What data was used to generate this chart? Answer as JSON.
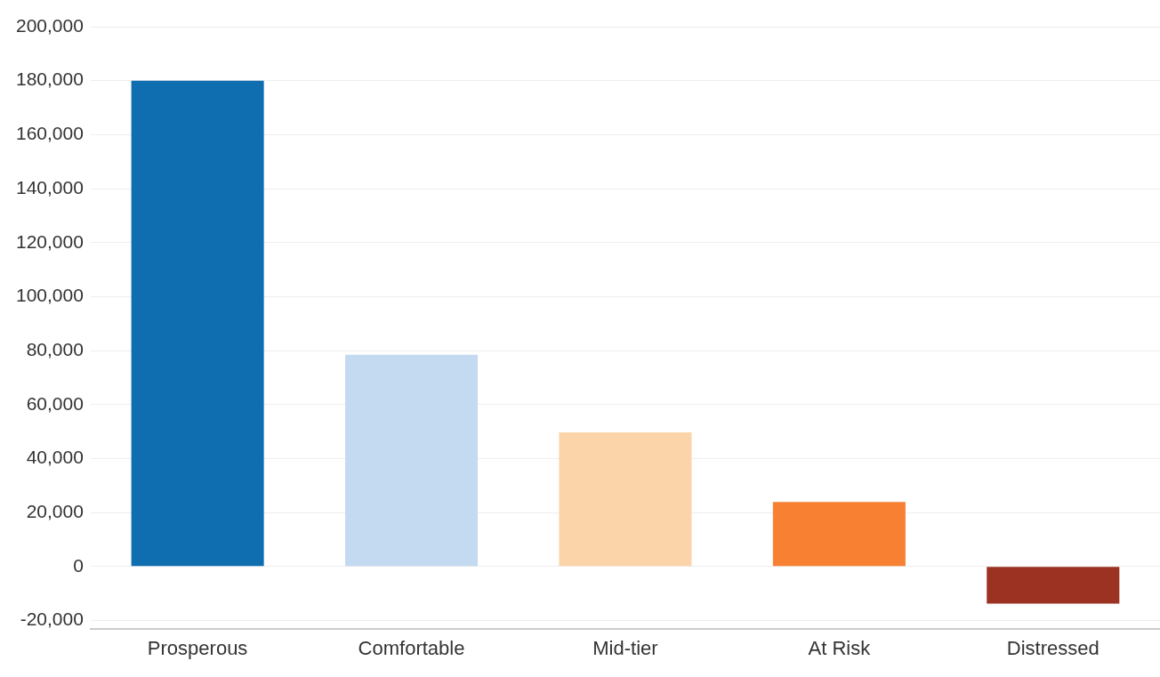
{
  "chart_data": {
    "type": "bar",
    "categories": [
      "Prosperous",
      "Comfortable",
      "Mid-tier",
      "At Risk",
      "Distressed"
    ],
    "values": [
      180000,
      78500,
      49700,
      23900,
      -13700
    ],
    "colors": [
      "#0f6eb0",
      "#c4daf0",
      "#fbd5a9",
      "#f78033",
      "#9b3222"
    ],
    "ylim": [
      -23000,
      200000
    ],
    "yticks": [
      {
        "value": -20000,
        "label": "-20,000"
      },
      0,
      {
        "value": 20000,
        "label": "20,000"
      },
      {
        "value": 40000,
        "label": "40,000"
      },
      {
        "value": 60000,
        "label": "60,000"
      },
      {
        "value": 80000,
        "label": "80,000"
      },
      {
        "value": 100000,
        "label": "100,000"
      },
      {
        "value": 120000,
        "label": "120,000"
      },
      {
        "value": 140000,
        "label": "140,000"
      },
      {
        "value": 160000,
        "label": "160,000"
      },
      {
        "value": 180000,
        "label": "180,000"
      },
      {
        "value": 200000,
        "label": "200,000"
      }
    ],
    "grid": "y"
  }
}
